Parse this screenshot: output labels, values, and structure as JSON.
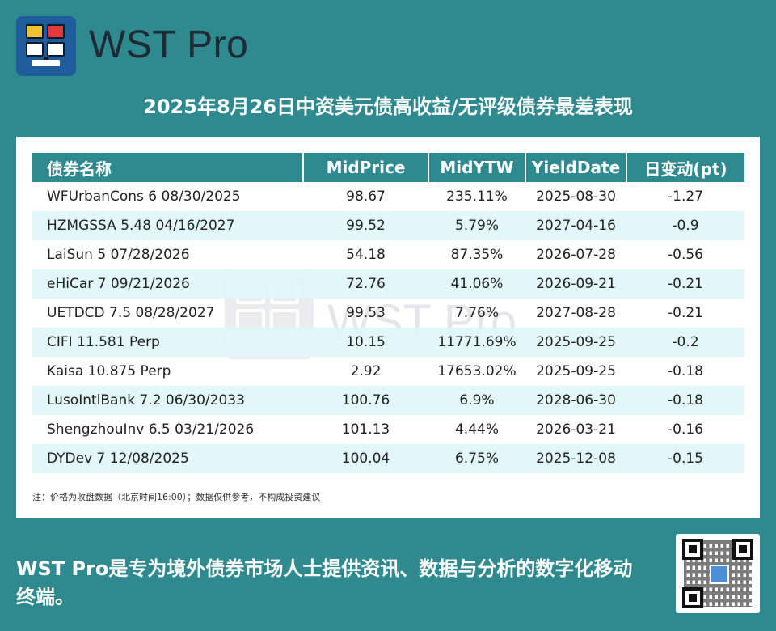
{
  "header": {
    "brand": "WST Pro",
    "title": "2025年8月26日中资美元债高收益/无评级债券最差表现"
  },
  "table": {
    "columns": [
      "债券名称",
      "MidPrice",
      "MidYTW",
      "YieldDate",
      "日变动(pt)"
    ],
    "rows": [
      [
        "WFUrbanCons 6 08/30/2025",
        "98.67",
        "235.11%",
        "2025-08-30",
        "-1.27"
      ],
      [
        "HZMGSSA 5.48 04/16/2027",
        "99.52",
        "5.79%",
        "2027-04-16",
        "-0.9"
      ],
      [
        "LaiSun 5 07/28/2026",
        "54.18",
        "87.35%",
        "2026-07-28",
        "-0.56"
      ],
      [
        "eHiCar 7 09/21/2026",
        "72.76",
        "41.06%",
        "2026-09-21",
        "-0.21"
      ],
      [
        "UETDCD 7.5 08/28/2027",
        "99.53",
        "7.76%",
        "2027-08-28",
        "-0.21"
      ],
      [
        "CIFI 11.581 Perp",
        "10.15",
        "11771.69%",
        "2025-09-25",
        "-0.2"
      ],
      [
        "Kaisa 10.875 Perp",
        "2.92",
        "17653.02%",
        "2025-09-25",
        "-0.18"
      ],
      [
        "LusoIntlBank 7.2 06/30/2033",
        "100.76",
        "6.9%",
        "2028-06-30",
        "-0.18"
      ],
      [
        "ShengzhouInv 6.5 03/21/2026",
        "101.13",
        "4.44%",
        "2026-03-21",
        "-0.16"
      ],
      [
        "DYDev 7 12/08/2025",
        "100.04",
        "6.75%",
        "2025-12-08",
        "-0.15"
      ]
    ],
    "note": "注：价格为收盘数据（北京时间16:00）；数据仅供参考，不构成投资建议"
  },
  "watermark": "WST Pro",
  "footer": {
    "text": "WST Pro是专为境外债券市场人士提供资讯、数据与分析的数字化移动终端。"
  },
  "colors": {
    "background": "#2e8a8f",
    "header_row": "#2e8a8f",
    "alt_row": "#e0f6f7"
  },
  "icons": [
    "wst-logo-icon",
    "qr-code-icon"
  ]
}
